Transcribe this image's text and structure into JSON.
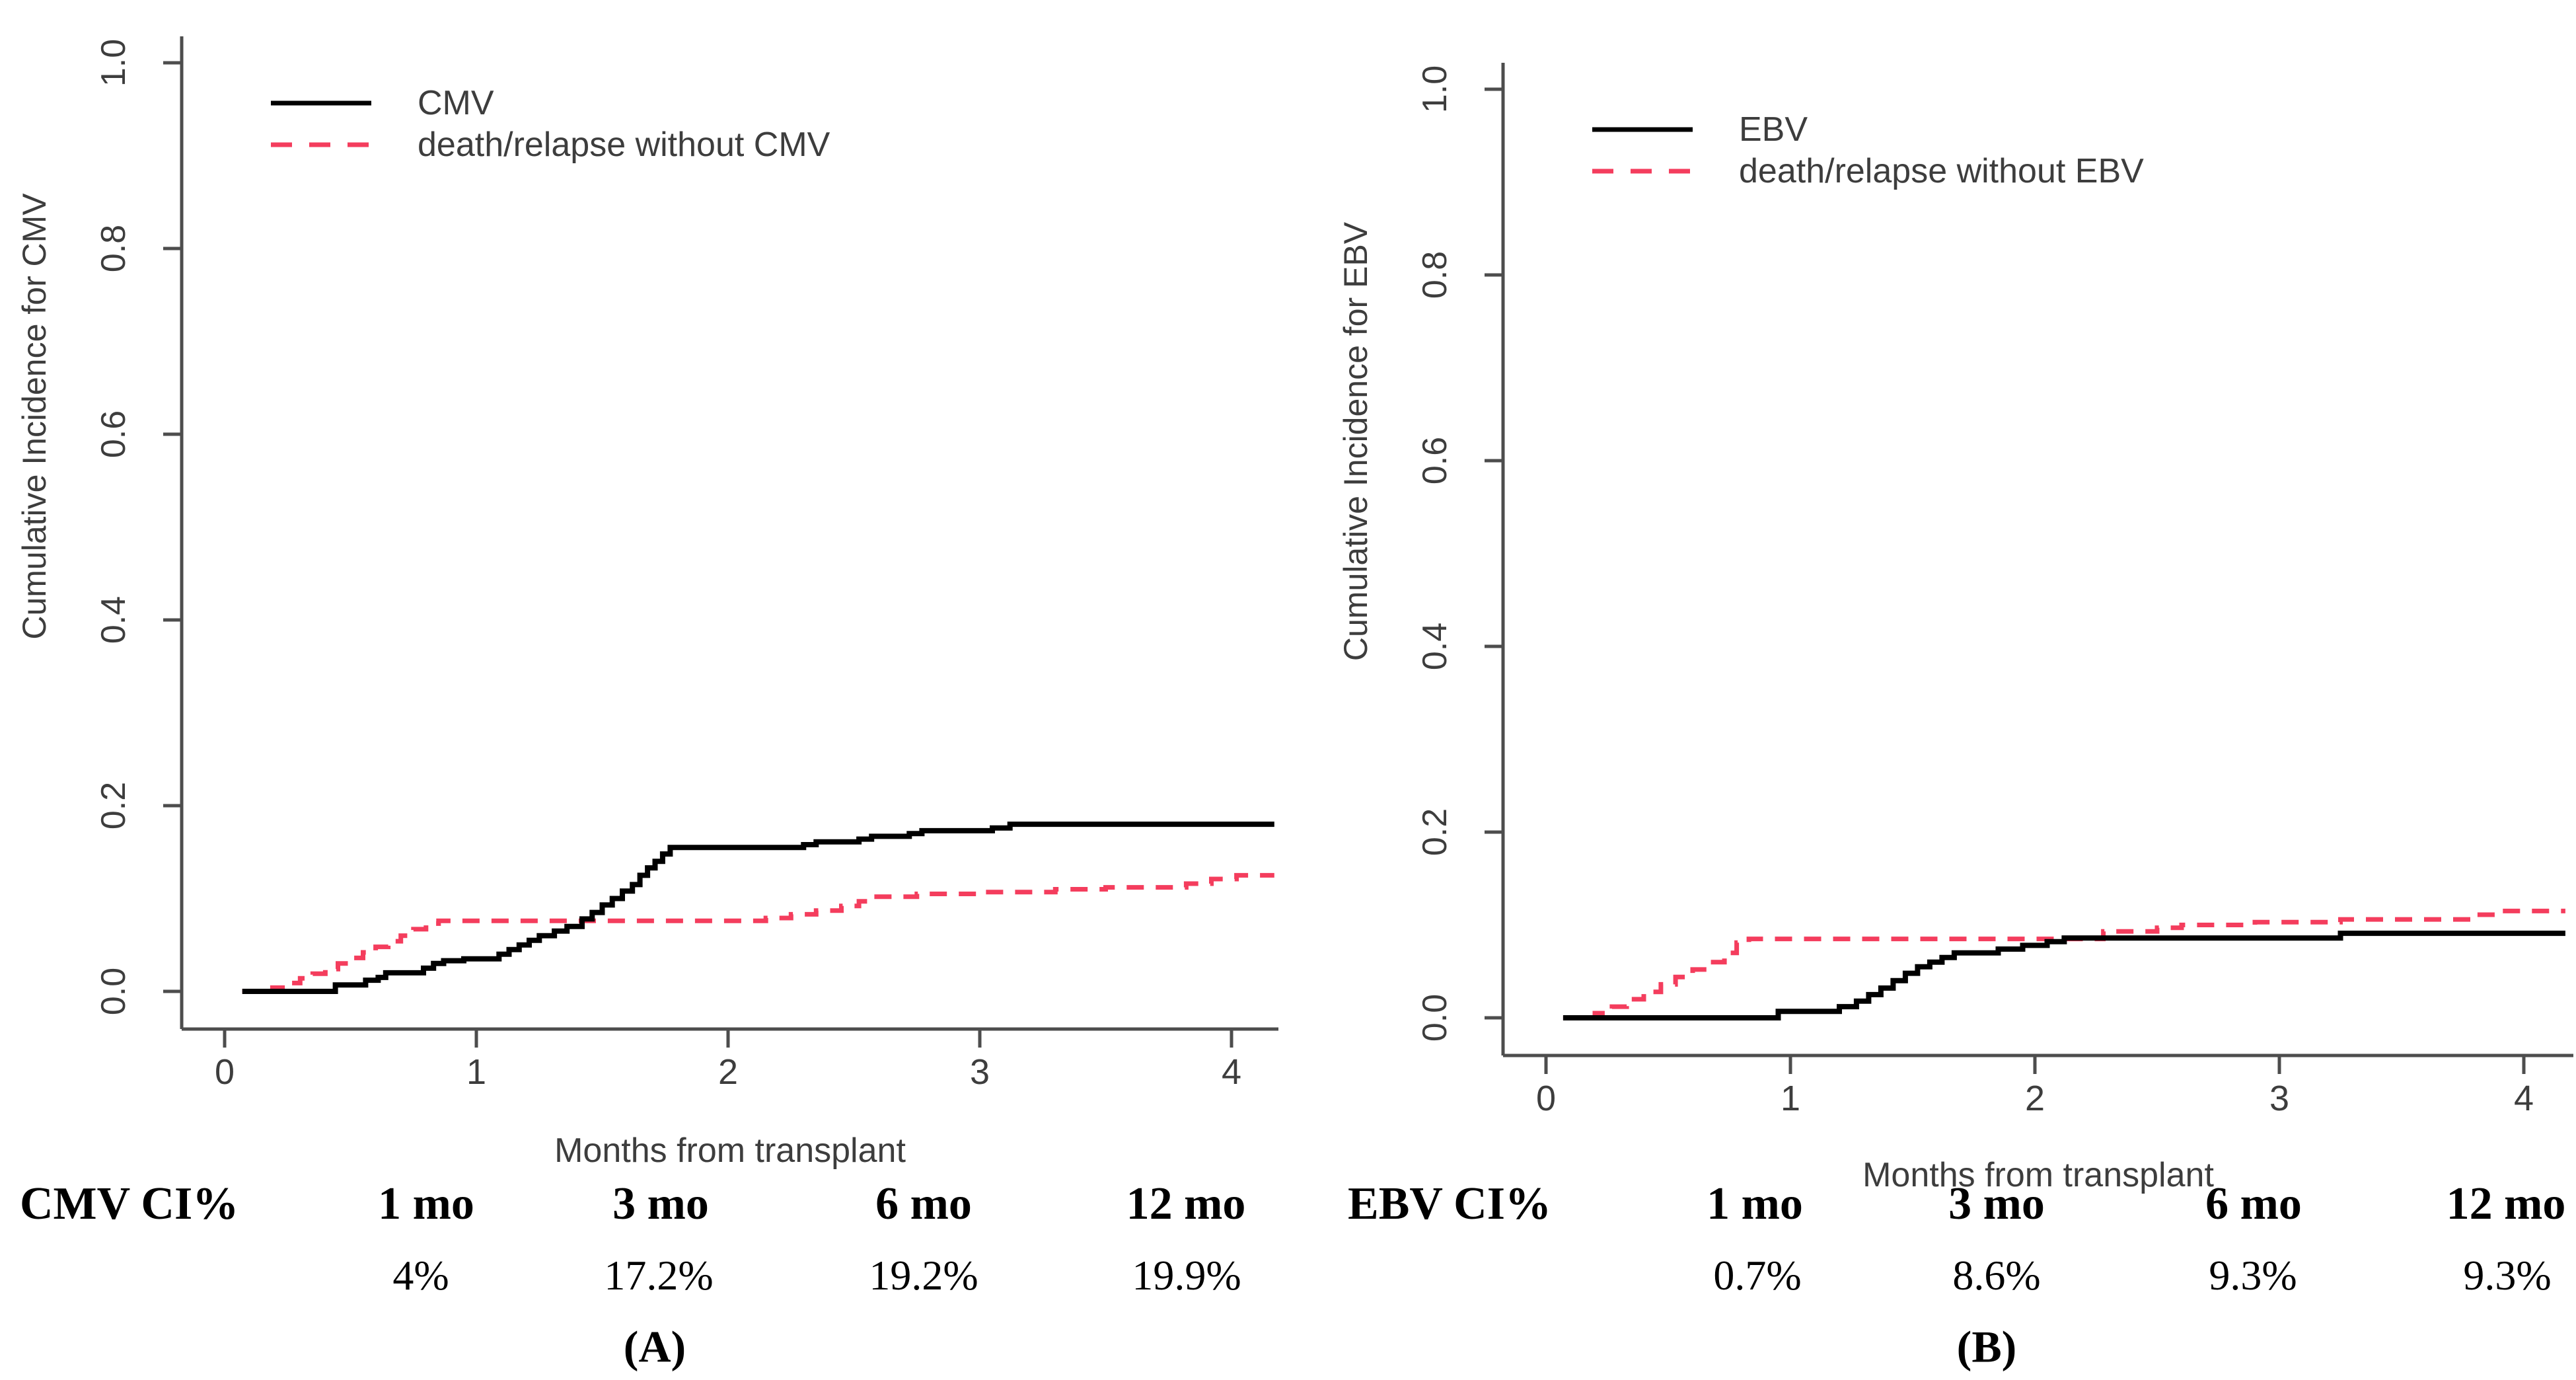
{
  "figure": {
    "background": "#ffffff",
    "colors": {
      "event_curve": "#000000",
      "competing_curve": "#f43d5d",
      "axis": "#4d4d4d",
      "text": "#3d3d3d"
    }
  },
  "chart_data": [
    {
      "type": "line",
      "subtype": "step-cumulative-incidence",
      "panel": "A",
      "xlabel": "Months from transplant",
      "ylabel": "Cumulative Incidence for CMV",
      "xlim": [
        0,
        4.17
      ],
      "ylim": [
        0,
        1.0
      ],
      "xticks": [
        0,
        1,
        2,
        3,
        4
      ],
      "ytick_labels": [
        "0.0",
        "0.2",
        "0.4",
        "0.6",
        "0.8",
        "1.0"
      ],
      "ytick_values": [
        0,
        0.2,
        0.4,
        0.6,
        0.8,
        1.0
      ],
      "grid": false,
      "legend_position": "top-left-inside",
      "series": [
        {
          "name": "death/relapse without CMV",
          "style": "dashed",
          "color": "#f43d5d",
          "steps": [
            [
              0,
              0
            ],
            [
              0.19,
              0.004
            ],
            [
              0.25,
              0.009
            ],
            [
              0.3,
              0.014
            ],
            [
              0.35,
              0.019
            ],
            [
              0.4,
              0.024
            ],
            [
              0.45,
              0.03
            ],
            [
              0.5,
              0.036
            ],
            [
              0.55,
              0.042
            ],
            [
              0.6,
              0.048
            ],
            [
              0.65,
              0.054
            ],
            [
              0.7,
              0.06
            ],
            [
              0.75,
              0.067
            ],
            [
              0.8,
              0.073
            ],
            [
              0.85,
              0.076
            ],
            [
              2.15,
              0.079
            ],
            [
              2.25,
              0.083
            ],
            [
              2.35,
              0.087
            ],
            [
              2.45,
              0.092
            ],
            [
              2.52,
              0.097
            ],
            [
              2.58,
              0.102
            ],
            [
              2.75,
              0.105
            ],
            [
              3.0,
              0.107
            ],
            [
              3.3,
              0.11
            ],
            [
              3.5,
              0.112
            ],
            [
              3.82,
              0.116
            ],
            [
              3.92,
              0.121
            ],
            [
              4.02,
              0.125
            ]
          ]
        },
        {
          "name": "CMV",
          "style": "solid",
          "color": "#000000",
          "steps": [
            [
              0,
              0
            ],
            [
              0.44,
              0.007
            ],
            [
              0.56,
              0.012
            ],
            [
              0.61,
              0.015
            ],
            [
              0.64,
              0.02
            ],
            [
              0.79,
              0.025
            ],
            [
              0.83,
              0.03
            ],
            [
              0.87,
              0.033
            ],
            [
              0.95,
              0.035
            ],
            [
              1.09,
              0.04
            ],
            [
              1.13,
              0.045
            ],
            [
              1.17,
              0.05
            ],
            [
              1.21,
              0.055
            ],
            [
              1.25,
              0.06
            ],
            [
              1.31,
              0.065
            ],
            [
              1.36,
              0.07
            ],
            [
              1.42,
              0.078
            ],
            [
              1.46,
              0.085
            ],
            [
              1.5,
              0.093
            ],
            [
              1.54,
              0.1
            ],
            [
              1.58,
              0.108
            ],
            [
              1.62,
              0.115
            ],
            [
              1.65,
              0.125
            ],
            [
              1.68,
              0.133
            ],
            [
              1.71,
              0.14
            ],
            [
              1.74,
              0.148
            ],
            [
              1.77,
              0.155
            ],
            [
              2.3,
              0.158
            ],
            [
              2.35,
              0.161
            ],
            [
              2.52,
              0.164
            ],
            [
              2.57,
              0.167
            ],
            [
              2.72,
              0.17
            ],
            [
              2.77,
              0.173
            ],
            [
              3.05,
              0.176
            ],
            [
              3.12,
              0.18
            ]
          ]
        }
      ],
      "legend_entries": [
        "CMV",
        "death/relapse without CMV"
      ]
    },
    {
      "type": "line",
      "subtype": "step-cumulative-incidence",
      "panel": "B",
      "xlabel": "Months from transplant",
      "ylabel": "Cumulative Incidence for EBV",
      "xlim": [
        0,
        4.17
      ],
      "ylim": [
        0,
        1.0
      ],
      "xticks": [
        0,
        1,
        2,
        3,
        4
      ],
      "ytick_labels": [
        "0.0",
        "0.2",
        "0.4",
        "0.6",
        "0.8",
        "1.0"
      ],
      "ytick_values": [
        0,
        0.2,
        0.4,
        0.6,
        0.8,
        1.0
      ],
      "grid": false,
      "legend_position": "top-left-inside",
      "series": [
        {
          "name": "death/relapse without EBV",
          "style": "dashed",
          "color": "#f43d5d",
          "steps": [
            [
              0,
              0
            ],
            [
              0.2,
              0.005
            ],
            [
              0.27,
              0.012
            ],
            [
              0.33,
              0.02
            ],
            [
              0.4,
              0.028
            ],
            [
              0.47,
              0.036
            ],
            [
              0.53,
              0.044
            ],
            [
              0.6,
              0.052
            ],
            [
              0.67,
              0.06
            ],
            [
              0.73,
              0.07
            ],
            [
              0.78,
              0.081
            ],
            [
              0.83,
              0.085
            ],
            [
              2.28,
              0.093
            ],
            [
              2.5,
              0.097
            ],
            [
              2.6,
              0.1
            ],
            [
              2.9,
              0.103
            ],
            [
              3.25,
              0.106
            ],
            [
              3.8,
              0.111
            ],
            [
              3.9,
              0.115
            ]
          ]
        },
        {
          "name": "EBV",
          "style": "solid",
          "color": "#000000",
          "steps": [
            [
              0,
              0
            ],
            [
              0.95,
              0.007
            ],
            [
              1.2,
              0.012
            ],
            [
              1.27,
              0.018
            ],
            [
              1.32,
              0.025
            ],
            [
              1.37,
              0.032
            ],
            [
              1.42,
              0.04
            ],
            [
              1.47,
              0.048
            ],
            [
              1.52,
              0.055
            ],
            [
              1.57,
              0.06
            ],
            [
              1.62,
              0.065
            ],
            [
              1.67,
              0.07
            ],
            [
              1.85,
              0.074
            ],
            [
              1.95,
              0.078
            ],
            [
              2.05,
              0.082
            ],
            [
              2.12,
              0.086
            ],
            [
              3.25,
              0.091
            ]
          ]
        }
      ],
      "legend_entries": [
        "EBV",
        "death/relapse without EBV"
      ]
    }
  ],
  "tables": [
    {
      "label": "CMV CI%",
      "headers": [
        "1 mo",
        "3 mo",
        "6 mo",
        "12 mo"
      ],
      "values": [
        "4%",
        "17.2%",
        "19.2%",
        "19.9%"
      ],
      "panel_letter": "(A)"
    },
    {
      "label": "EBV CI%",
      "headers": [
        "1 mo",
        "3 mo",
        "6 mo",
        "12 mo"
      ],
      "values": [
        "0.7%",
        "8.6%",
        "9.3%",
        "9.3%"
      ],
      "panel_letter": "(B)"
    }
  ]
}
